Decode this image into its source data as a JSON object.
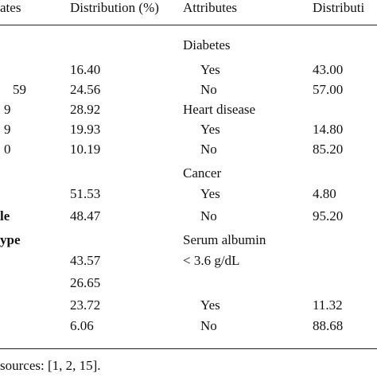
{
  "table": {
    "header": [
      "ates",
      "Distribution (%)",
      "Attributes",
      "Distributi"
    ],
    "rows": [
      [
        null,
        null,
        "Diabetes",
        null
      ],
      [
        null,
        "16.40",
        "Yes",
        "43.00"
      ],
      [
        "59",
        "24.56",
        "No",
        "57.00"
      ],
      [
        "9",
        "28.92",
        "Heart disease",
        null
      ],
      [
        "9",
        "19.93",
        "Yes",
        "14.80"
      ],
      [
        "0",
        "10.19",
        "No",
        "85.20"
      ],
      [
        null,
        null,
        "Cancer",
        null
      ],
      [
        null,
        "51.53",
        "Yes",
        "4.80"
      ],
      [
        "le",
        "48.47",
        "No",
        "95.20"
      ],
      [
        "ype",
        null,
        "Serum albumin",
        null
      ],
      [
        null,
        "43.57",
        "< 3.6 g/dL",
        null
      ],
      [
        null,
        "26.65",
        null,
        null
      ],
      [
        null,
        "23.72",
        "Yes",
        "11.32"
      ],
      [
        null,
        "6.06",
        "No",
        "88.68"
      ]
    ],
    "note": "sources: [1, 2, 15]."
  }
}
